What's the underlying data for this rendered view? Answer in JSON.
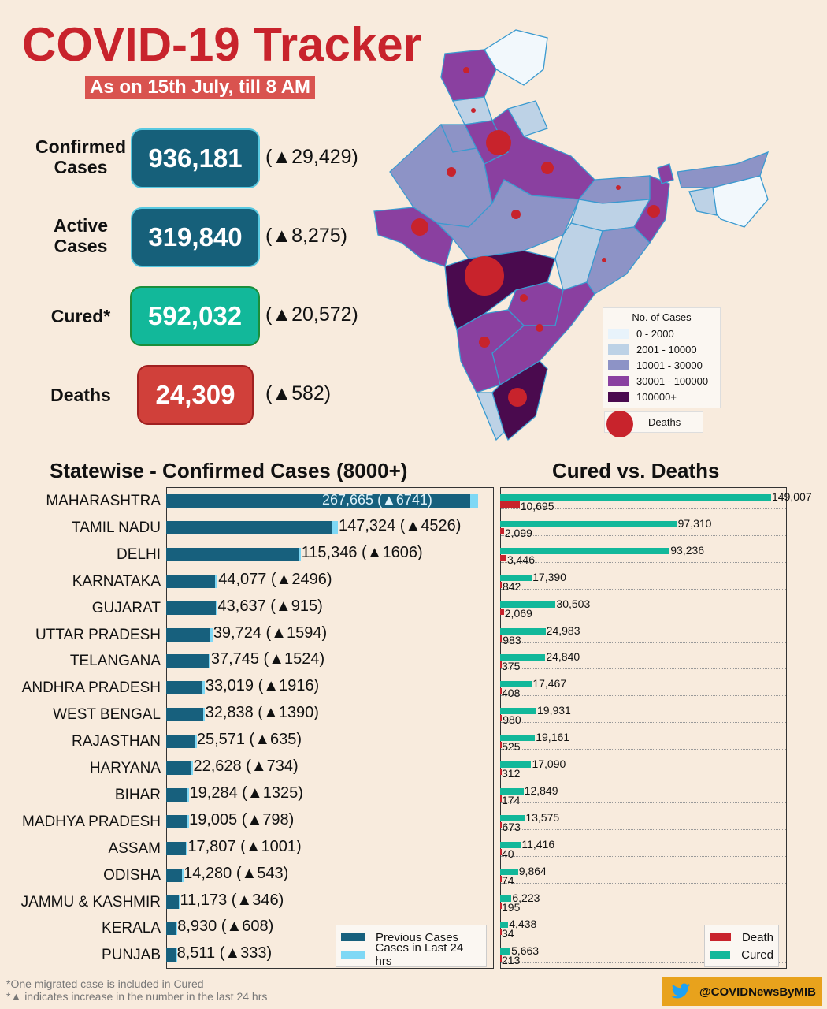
{
  "header": {
    "title": "COVID-19 Tracker",
    "subtitle": "As on 15th July, till 8 AM"
  },
  "stats": [
    {
      "label_lines": [
        "Confirmed",
        "Cases"
      ],
      "value": "936,181",
      "delta": "(▲29,429)",
      "color": "#16607a",
      "border": "#58c8e0"
    },
    {
      "label_lines": [
        "Active",
        "Cases"
      ],
      "value": "319,840",
      "delta": "(▲8,275)",
      "color": "#16607a",
      "border": "#58c8e0"
    },
    {
      "label_lines": [
        "Cured*"
      ],
      "value": "592,032",
      "delta": "(▲20,572)",
      "color": "#12b89a",
      "border": "#1b8e3b"
    },
    {
      "label_lines": [
        "Deaths"
      ],
      "value": "24,309",
      "delta": "(▲582)",
      "color": "#d0403a",
      "border": "#a02020"
    }
  ],
  "map": {
    "legend_title": "No. of Cases",
    "legend": [
      {
        "label": "0 - 2000",
        "color": "#e8f3fb"
      },
      {
        "label": "2001 - 10000",
        "color": "#bdd2e6"
      },
      {
        "label": "10001 - 30000",
        "color": "#8d93c6"
      },
      {
        "label": "30001 - 100000",
        "color": "#8a40a0"
      },
      {
        "label": "100000+",
        "color": "#4a0a4e"
      }
    ],
    "deaths_label": "Deaths",
    "death_color": "#c8232c"
  },
  "chart_data": [
    {
      "type": "bar",
      "orientation": "horizontal",
      "stacked": true,
      "title": "Statewise - Confirmed Cases (8000+)",
      "categories": [
        "MAHARASHTRA",
        "TAMIL NADU",
        "DELHI",
        "KARNATAKA",
        "GUJARAT",
        "UTTAR PRADESH",
        "TELANGANA",
        "ANDHRA PRADESH",
        "WEST BENGAL",
        "RAJASTHAN",
        "HARYANA",
        "BIHAR",
        "MADHYA PRADESH",
        "ASSAM",
        "ODISHA",
        "JAMMU & KASHMIR",
        "KERALA",
        "PUNJAB"
      ],
      "series": [
        {
          "name": "Previous Cases",
          "color": "#17607d",
          "values": [
            260924,
            142798,
            113740,
            41581,
            42722,
            38130,
            36221,
            31103,
            31448,
            24936,
            21894,
            17959,
            18207,
            16806,
            13737,
            10827,
            8322,
            8178
          ]
        },
        {
          "name": "Cases in Last 24 hrs",
          "color": "#7fd8f5",
          "values": [
            6741,
            4526,
            1606,
            2496,
            915,
            1594,
            1524,
            1916,
            1390,
            635,
            734,
            1325,
            798,
            1001,
            543,
            346,
            608,
            333
          ]
        }
      ],
      "labels": [
        "267,665 (▲6741)",
        "147,324 (▲4526)",
        "115,346 (▲1606)",
        "44,077 (▲2496)",
        "43,637 (▲915)",
        "39,724 (▲1594)",
        "37,745 (▲1524)",
        "33,019 (▲1916)",
        "32,838 (▲1390)",
        "25,571 (▲635)",
        "22,628 (▲734)",
        "19,284 (▲1325)",
        "19,005 (▲798)",
        "17,807 (▲1001)",
        "14,280 (▲543)",
        "11,173 (▲346)",
        "8,930 (▲608)",
        "8,511 (▲333)"
      ],
      "xlim": [
        0,
        280000
      ],
      "legend_position": "bottom-right"
    },
    {
      "type": "bar",
      "orientation": "horizontal",
      "title": "Cured vs. Deaths",
      "categories": [
        "MAHARASHTRA",
        "TAMIL NADU",
        "DELHI",
        "KARNATAKA",
        "GUJARAT",
        "UTTAR PRADESH",
        "TELANGANA",
        "ANDHRA PRADESH",
        "WEST BENGAL",
        "RAJASTHAN",
        "HARYANA",
        "BIHAR",
        "MADHYA PRADESH",
        "ASSAM",
        "ODISHA",
        "JAMMU & KASHMIR",
        "KERALA",
        "PUNJAB"
      ],
      "series": [
        {
          "name": "Cured",
          "color": "#12b89a",
          "values": [
            149007,
            97310,
            93236,
            17390,
            30503,
            24983,
            24840,
            17467,
            19931,
            19161,
            17090,
            12849,
            13575,
            11416,
            9864,
            6223,
            4438,
            5663
          ]
        },
        {
          "name": "Death",
          "color": "#c8232c",
          "values": [
            10695,
            2099,
            3446,
            842,
            2069,
            983,
            375,
            408,
            980,
            525,
            312,
            174,
            673,
            40,
            74,
            195,
            34,
            213
          ]
        }
      ],
      "cured_labels": [
        "149,007",
        "97,310",
        "93,236",
        "17,390",
        "30,503",
        "24,983",
        "24,840",
        "17,467",
        "19,931",
        "19,161",
        "17,090",
        "12,849",
        "13,575",
        "11,416",
        "9,864",
        "6,223",
        "4,438",
        "5,663"
      ],
      "death_labels": [
        "10,695",
        "2,099",
        "3,446",
        "842",
        "2,069",
        "983",
        "375",
        "408",
        "980",
        "525",
        "312",
        "174",
        "673",
        "40",
        "74",
        "195",
        "34",
        "213"
      ],
      "xlim": [
        0,
        150000
      ],
      "grid": true,
      "legend_position": "bottom-right"
    }
  ],
  "footer": {
    "note1": "*One migrated case is included in Cured",
    "note2": "*▲ indicates increase in the number in the last 24 hrs",
    "handle": "@COVIDNewsByMIB"
  }
}
